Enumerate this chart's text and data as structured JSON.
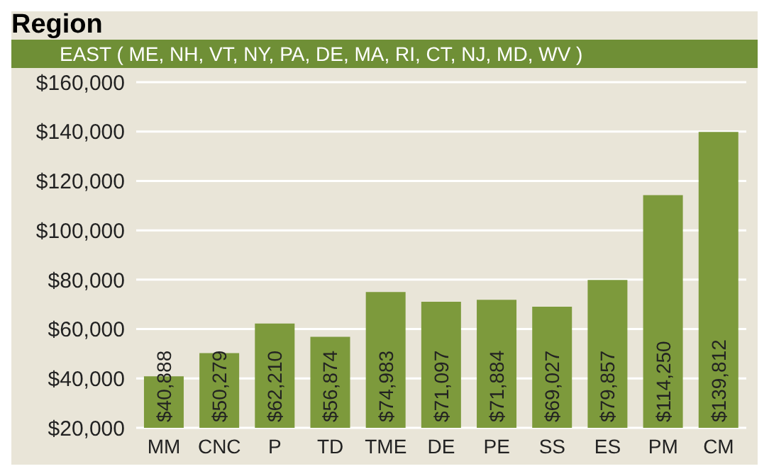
{
  "chart_data": {
    "type": "bar",
    "title": "Region",
    "subtitle": "EAST ( ME, NH, VT, NY, PA, DE, MA, RI, CT, NJ, MD, WV )",
    "categories": [
      "MM",
      "CNC",
      "P",
      "TD",
      "TME",
      "DE",
      "PE",
      "SS",
      "ES",
      "PM",
      "CM"
    ],
    "values": [
      40888,
      50279,
      62210,
      56874,
      74983,
      71097,
      71884,
      69027,
      79857,
      114250,
      139812
    ],
    "value_labels": [
      "$40,888",
      "$50,279",
      "$62,210",
      "$56,874",
      "$74,983",
      "$71,097",
      "$71,884",
      "$69,027",
      "$79,857",
      "$114,250",
      "$139,812"
    ],
    "color": "#7d9a3c",
    "ylim": [
      20000,
      160000
    ],
    "yticks": [
      {
        "value": 20000,
        "label": "$20,000"
      },
      {
        "value": 40000,
        "label": "$40,000"
      },
      {
        "value": 60000,
        "label": "$60,000"
      },
      {
        "value": 80000,
        "label": "$80,000"
      },
      {
        "value": 100000,
        "label": "$100,000"
      },
      {
        "value": 120000,
        "label": "$120,000"
      },
      {
        "value": 140000,
        "label": "$140,000"
      },
      {
        "value": 160000,
        "label": "$160,000"
      }
    ],
    "grid": "y"
  }
}
